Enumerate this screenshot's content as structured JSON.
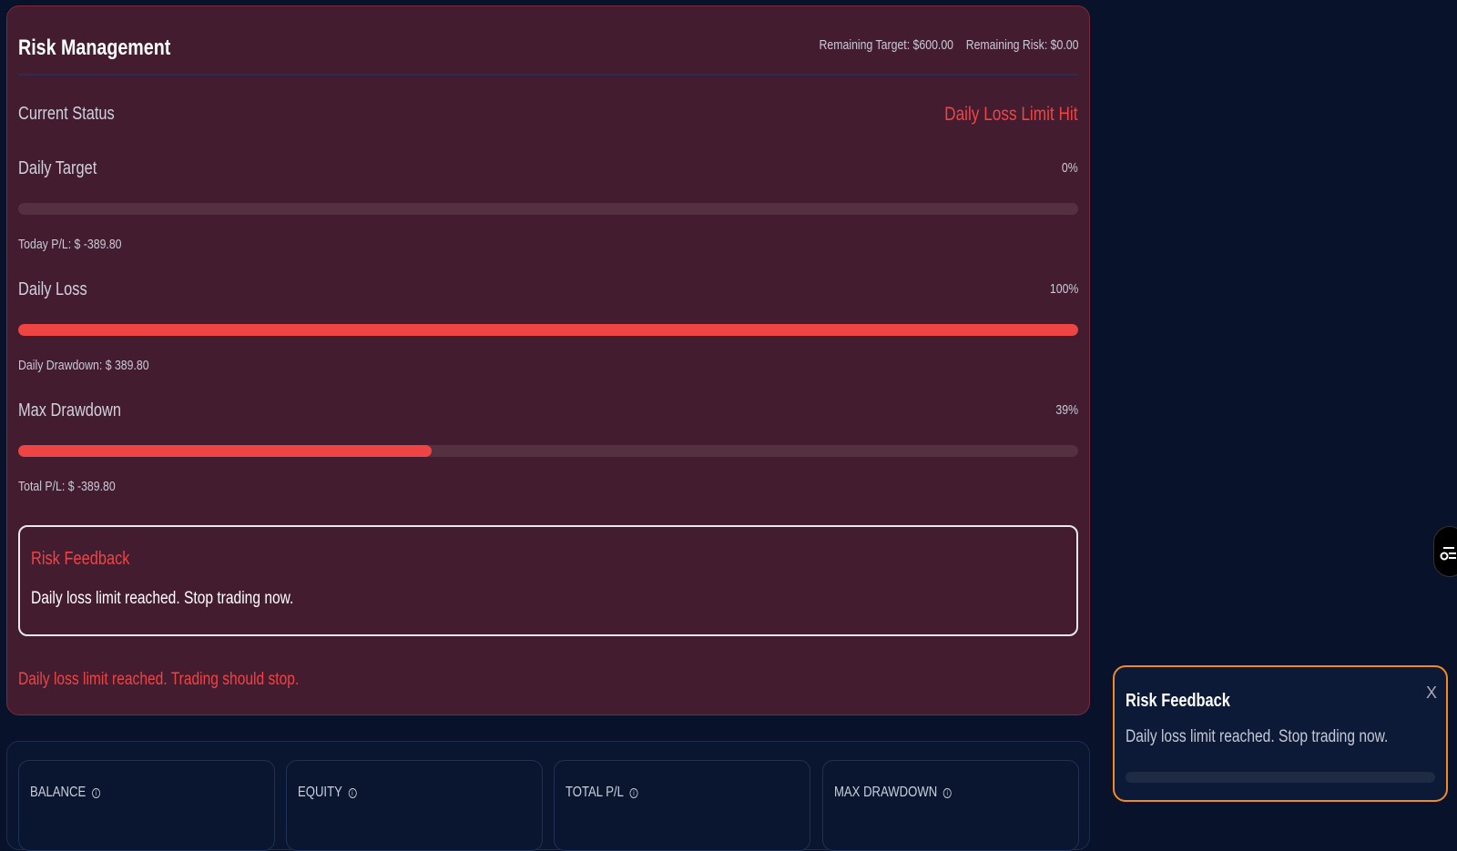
{
  "risk_panel": {
    "title": "Risk Management",
    "remaining_target": "Remaining Target: $600.00",
    "remaining_risk": "Remaining Risk: $0.00",
    "current_status_label": "Current Status",
    "current_status_value": "Daily Loss Limit Hit",
    "daily_target": {
      "label": "Daily Target",
      "percent_text": "0%",
      "progress": 0,
      "detail": "Today P/L: $ -389.80"
    },
    "daily_loss": {
      "label": "Daily Loss",
      "percent_text": "100%",
      "progress": 100,
      "detail": "Daily Drawdown: $ 389.80"
    },
    "max_drawdown": {
      "label": "Max Drawdown",
      "percent_text": "39%",
      "progress": 39,
      "detail": "Total P/L: $ -389.80"
    },
    "feedback": {
      "title": "Risk Feedback",
      "message": "Daily loss limit reached. Stop trading now."
    },
    "warning": "Daily loss limit reached. Trading should stop."
  },
  "stats": [
    {
      "label": "BALANCE"
    },
    {
      "label": "EQUITY"
    },
    {
      "label": "TOTAL P/L"
    },
    {
      "label": "MAX DRAWDOWN"
    }
  ],
  "toast": {
    "title": "Risk Feedback",
    "message": "Daily loss limit reached. Stop trading now.",
    "close": "X",
    "progress": 0
  },
  "colors": {
    "danger": "#ef4444",
    "toast_border": "#f08a24",
    "panel_bg": "#431c30",
    "page_bg": "#08122a"
  }
}
